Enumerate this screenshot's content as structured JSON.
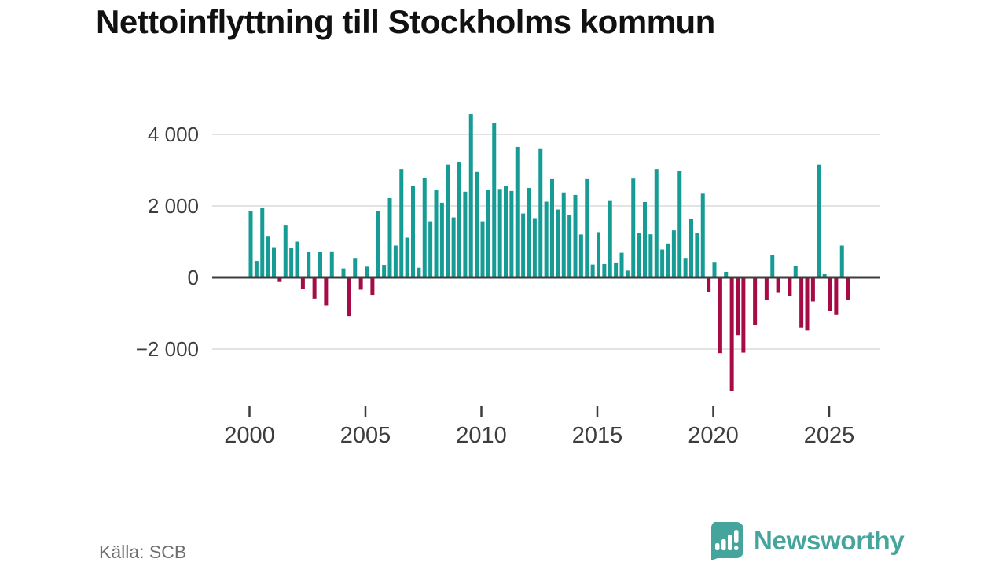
{
  "title": "Nettoinflyttning till Stockholms kommun",
  "source": "Källa: SCB",
  "brand": {
    "name": "Newsworthy",
    "color": "#45a49c"
  },
  "colors": {
    "positive_bar": "#169c95",
    "negative_bar": "#a60b45",
    "gridline": "#e3e3e3",
    "zero_line": "#3d3d3d",
    "axis_text": "#3d3d3d",
    "title_text": "#111111",
    "source_text": "#6e6e6e",
    "background": "#ffffff"
  },
  "chart_data": {
    "type": "bar",
    "title": "Nettoinflyttning till Stockholms kommun",
    "xlabel": "",
    "ylabel": "",
    "grid": true,
    "legend": false,
    "ylim": [
      -3400,
      4800
    ],
    "y_ticks": [
      {
        "value": 4000,
        "label": "4 000"
      },
      {
        "value": 2000,
        "label": "2 000"
      },
      {
        "value": 0,
        "label": "0"
      },
      {
        "value": -2000,
        "label": "−2 000"
      }
    ],
    "x_ticks": [
      {
        "year": 2000,
        "label": "2000"
      },
      {
        "year": 2005,
        "label": "2005"
      },
      {
        "year": 2010,
        "label": "2010"
      },
      {
        "year": 2015,
        "label": "2015"
      },
      {
        "year": 2020,
        "label": "2020"
      },
      {
        "year": 2025,
        "label": "2025"
      }
    ],
    "categories": [
      "2000 Q1",
      "2000 Q2",
      "2000 Q3",
      "2000 Q4",
      "2001 Q1",
      "2001 Q2",
      "2001 Q3",
      "2001 Q4",
      "2002 Q1",
      "2002 Q2",
      "2002 Q3",
      "2002 Q4",
      "2003 Q1",
      "2003 Q2",
      "2003 Q3",
      "2003 Q4",
      "2004 Q1",
      "2004 Q2",
      "2004 Q3",
      "2004 Q4",
      "2005 Q1",
      "2005 Q2",
      "2005 Q3",
      "2005 Q4",
      "2006 Q1",
      "2006 Q2",
      "2006 Q3",
      "2006 Q4",
      "2007 Q1",
      "2007 Q2",
      "2007 Q3",
      "2007 Q4",
      "2008 Q1",
      "2008 Q2",
      "2008 Q3",
      "2008 Q4",
      "2009 Q1",
      "2009 Q2",
      "2009 Q3",
      "2009 Q4",
      "2010 Q1",
      "2010 Q2",
      "2010 Q3",
      "2010 Q4",
      "2011 Q1",
      "2011 Q2",
      "2011 Q3",
      "2011 Q4",
      "2012 Q1",
      "2012 Q2",
      "2012 Q3",
      "2012 Q4",
      "2013 Q1",
      "2013 Q2",
      "2013 Q3",
      "2013 Q4",
      "2014 Q1",
      "2014 Q2",
      "2014 Q3",
      "2014 Q4",
      "2015 Q1",
      "2015 Q2",
      "2015 Q3",
      "2015 Q4",
      "2016 Q1",
      "2016 Q2",
      "2016 Q3",
      "2016 Q4",
      "2017 Q1",
      "2017 Q2",
      "2017 Q3",
      "2017 Q4",
      "2018 Q1",
      "2018 Q2",
      "2018 Q3",
      "2018 Q4",
      "2019 Q1",
      "2019 Q2",
      "2019 Q3",
      "2019 Q4",
      "2020 Q1",
      "2020 Q2",
      "2020 Q3",
      "2020 Q4",
      "2021 Q1",
      "2021 Q2",
      "2021 Q3",
      "2021 Q4",
      "2022 Q1",
      "2022 Q2",
      "2022 Q3",
      "2022 Q4",
      "2023 Q1",
      "2023 Q2",
      "2023 Q3",
      "2023 Q4",
      "2024 Q1",
      "2024 Q2",
      "2024 Q3",
      "2024 Q4",
      "2025 Q1",
      "2025 Q2",
      "2025 Q3",
      "2025 Q4"
    ],
    "values": [
      1850,
      460,
      1950,
      1160,
      845,
      -125,
      1470,
      820,
      1000,
      -310,
      715,
      -590,
      715,
      -780,
      730,
      30,
      250,
      -1080,
      545,
      -340,
      300,
      -485,
      1860,
      350,
      2220,
      890,
      3030,
      1110,
      2565,
      270,
      2770,
      1570,
      2440,
      2090,
      3150,
      1680,
      3230,
      2400,
      4570,
      2950,
      1570,
      2440,
      4330,
      2455,
      2550,
      2420,
      3650,
      1790,
      2505,
      1660,
      3610,
      2120,
      2750,
      1900,
      2380,
      1740,
      2310,
      1200,
      2750,
      360,
      1265,
      375,
      2140,
      420,
      690,
      190,
      2765,
      1240,
      2110,
      1205,
      3030,
      780,
      950,
      1315,
      2970,
      545,
      1645,
      1240,
      2345,
      -410,
      435,
      -2115,
      155,
      -3170,
      -1610,
      -2100,
      -30,
      -1320,
      20,
      -630,
      615,
      -430,
      -20,
      -520,
      325,
      -1400,
      -1480,
      -670,
      3150,
      105,
      -925,
      -1050,
      890,
      -630
    ]
  }
}
